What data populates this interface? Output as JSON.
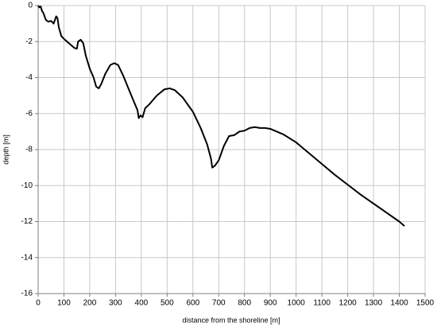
{
  "chart_data": {
    "type": "line",
    "x_label": "distance from the shoreline [m]",
    "y_label": "depth [m]",
    "x": [
      0,
      5,
      10,
      15,
      20,
      30,
      40,
      50,
      60,
      70,
      75,
      80,
      90,
      100,
      120,
      140,
      150,
      155,
      165,
      175,
      185,
      200,
      215,
      225,
      235,
      245,
      260,
      280,
      295,
      310,
      330,
      350,
      370,
      385,
      390,
      397,
      405,
      415,
      430,
      460,
      490,
      510,
      530,
      560,
      600,
      630,
      655,
      670,
      675,
      685,
      700,
      720,
      740,
      760,
      780,
      800,
      820,
      840,
      860,
      880,
      900,
      950,
      1000,
      1050,
      1100,
      1150,
      1200,
      1250,
      1300,
      1350,
      1400,
      1420
    ],
    "series": [
      {
        "color": "#000000",
        "values": [
          0,
          -0.1,
          -0.05,
          -0.3,
          -0.4,
          -0.8,
          -0.9,
          -0.85,
          -1.0,
          -0.6,
          -0.7,
          -1.2,
          -1.7,
          -1.85,
          -2.1,
          -2.35,
          -2.4,
          -2.0,
          -1.9,
          -2.1,
          -2.8,
          -3.5,
          -4.0,
          -4.5,
          -4.6,
          -4.35,
          -3.8,
          -3.3,
          -3.2,
          -3.3,
          -3.9,
          -4.6,
          -5.3,
          -5.8,
          -6.25,
          -6.1,
          -6.2,
          -5.7,
          -5.5,
          -5.0,
          -4.65,
          -4.6,
          -4.7,
          -5.1,
          -5.9,
          -6.8,
          -7.7,
          -8.5,
          -9.0,
          -8.9,
          -8.6,
          -7.8,
          -7.25,
          -7.2,
          -7.0,
          -6.95,
          -6.8,
          -6.75,
          -6.8,
          -6.8,
          -6.85,
          -7.15,
          -7.6,
          -8.2,
          -8.8,
          -9.4,
          -9.95,
          -10.5,
          -11.0,
          -11.5,
          -12.0,
          -12.25
        ]
      }
    ],
    "xlim": [
      0,
      1500
    ],
    "xticks": [
      0,
      100,
      200,
      300,
      400,
      500,
      600,
      700,
      800,
      900,
      1000,
      1100,
      1200,
      1300,
      1400,
      1500
    ],
    "ylim": [
      -16,
      0
    ],
    "yticks": [
      0,
      -2,
      -4,
      -6,
      -8,
      -10,
      -12,
      -14,
      -16
    ],
    "grid": true
  }
}
